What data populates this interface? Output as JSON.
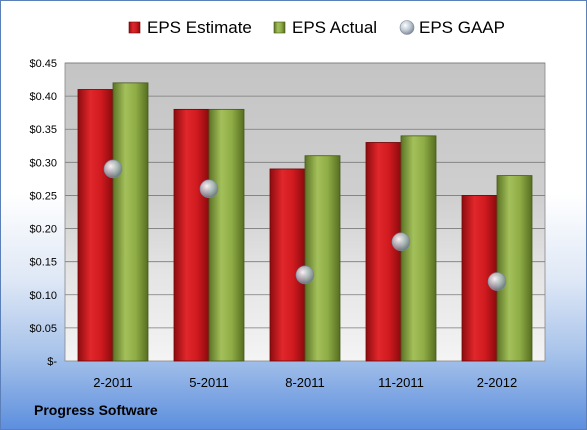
{
  "chart_data": {
    "type": "bar",
    "categories": [
      "2-2011",
      "5-2011",
      "8-2011",
      "11-2011",
      "2-2012"
    ],
    "series": [
      {
        "name": "EPS Estimate",
        "kind": "bar",
        "color": "#c8171c",
        "values": [
          0.41,
          0.38,
          0.29,
          0.33,
          0.25
        ]
      },
      {
        "name": "EPS Actual",
        "kind": "bar",
        "color": "#7f9c3a",
        "values": [
          0.42,
          0.38,
          0.31,
          0.34,
          0.28
        ]
      },
      {
        "name": "EPS GAAP",
        "kind": "marker",
        "color": "#b8c3cf",
        "values": [
          0.29,
          0.26,
          0.13,
          0.18,
          0.12
        ]
      }
    ],
    "yticks": [
      {
        "value": 0.45,
        "label": "$0.45"
      },
      {
        "value": 0.4,
        "label": "$0.40"
      },
      {
        "value": 0.35,
        "label": "$0.35"
      },
      {
        "value": 0.3,
        "label": "$0.30"
      },
      {
        "value": 0.25,
        "label": "$0.25"
      },
      {
        "value": 0.2,
        "label": "$0.20"
      },
      {
        "value": 0.15,
        "label": "$0.15"
      },
      {
        "value": 0.1,
        "label": "$0.10"
      },
      {
        "value": 0.05,
        "label": "$0.05"
      },
      {
        "value": 0,
        "label": "$-"
      }
    ],
    "ylim": [
      0,
      0.45
    ],
    "grid": true,
    "legend_position": "top"
  },
  "footer": {
    "company": "Progress Software"
  }
}
